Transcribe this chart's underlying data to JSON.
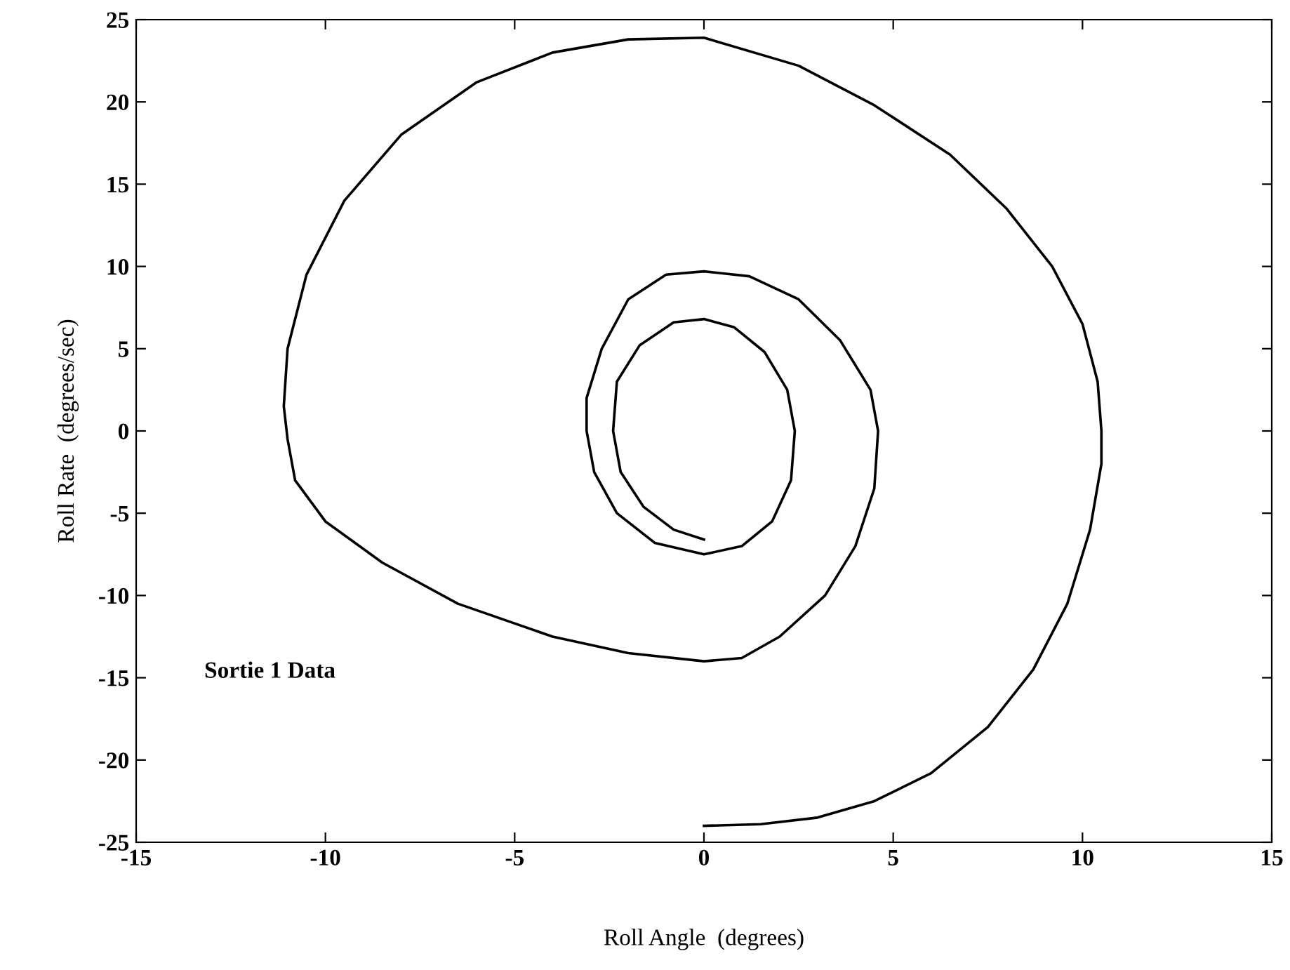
{
  "chart_data": {
    "type": "line",
    "xlabel": "Roll Angle  (degrees)",
    "ylabel": "Roll Rate  (degrees/sec)",
    "annotations": [
      "Sortie 1 Data"
    ],
    "series": [
      {
        "color": "#000000",
        "x": [
          0,
          1.5,
          3,
          4.5,
          6,
          7.5,
          8.7,
          9.6,
          10.2,
          10.5,
          10.5,
          10.4,
          10,
          9.2,
          8,
          6.5,
          4.5,
          2.5,
          0,
          -2,
          -4,
          -6,
          -8,
          -9.5,
          -10.5,
          -11,
          -11.1,
          -11,
          -10.8,
          -10,
          -8.5,
          -6.5,
          -4,
          -2,
          0,
          1,
          2,
          3.2,
          4,
          4.5,
          4.6,
          4.4,
          3.6,
          2.5,
          1.2,
          0,
          -1,
          -2,
          -2.7,
          -3.1,
          -3.1,
          -2.9,
          -2.3,
          -1.3,
          0,
          1,
          1.8,
          2.3,
          2.4,
          2.2,
          1.6,
          0.8,
          0,
          -0.8,
          -1.7,
          -2.3,
          -2.4,
          -2.2,
          -1.6,
          -0.8,
          0
        ],
        "values": [
          -24,
          -23.9,
          -23.5,
          -22.5,
          -20.8,
          -18,
          -14.5,
          -10.5,
          -6,
          -2,
          0,
          3,
          6.5,
          10,
          13.5,
          16.8,
          19.8,
          22.2,
          23.9,
          23.8,
          23,
          21.2,
          18,
          14,
          9.5,
          5,
          1.5,
          -0.5,
          -3,
          -5.5,
          -8,
          -10.5,
          -12.5,
          -13.5,
          -14,
          -13.8,
          -12.5,
          -10,
          -7,
          -3.5,
          0,
          2.5,
          5.5,
          8,
          9.4,
          9.7,
          9.5,
          8,
          5,
          2,
          0,
          -2.5,
          -5,
          -6.8,
          -7.5,
          -7,
          -5.5,
          -3,
          0,
          2.5,
          4.8,
          6.3,
          6.8,
          6.6,
          5.2,
          3,
          0,
          -2.5,
          -4.6,
          -6,
          -6.6
        ]
      }
    ],
    "xlim": [
      -15,
      15
    ],
    "xticks": [
      -15,
      -10,
      -5,
      0,
      5,
      10,
      15
    ],
    "ylim": [
      -25,
      25
    ],
    "yticks": [
      -25,
      -20,
      -15,
      -10,
      -5,
      0,
      5,
      10,
      15,
      20,
      25
    ],
    "grid": false,
    "legend": false,
    "marker": "none",
    "line_style": "solid"
  }
}
